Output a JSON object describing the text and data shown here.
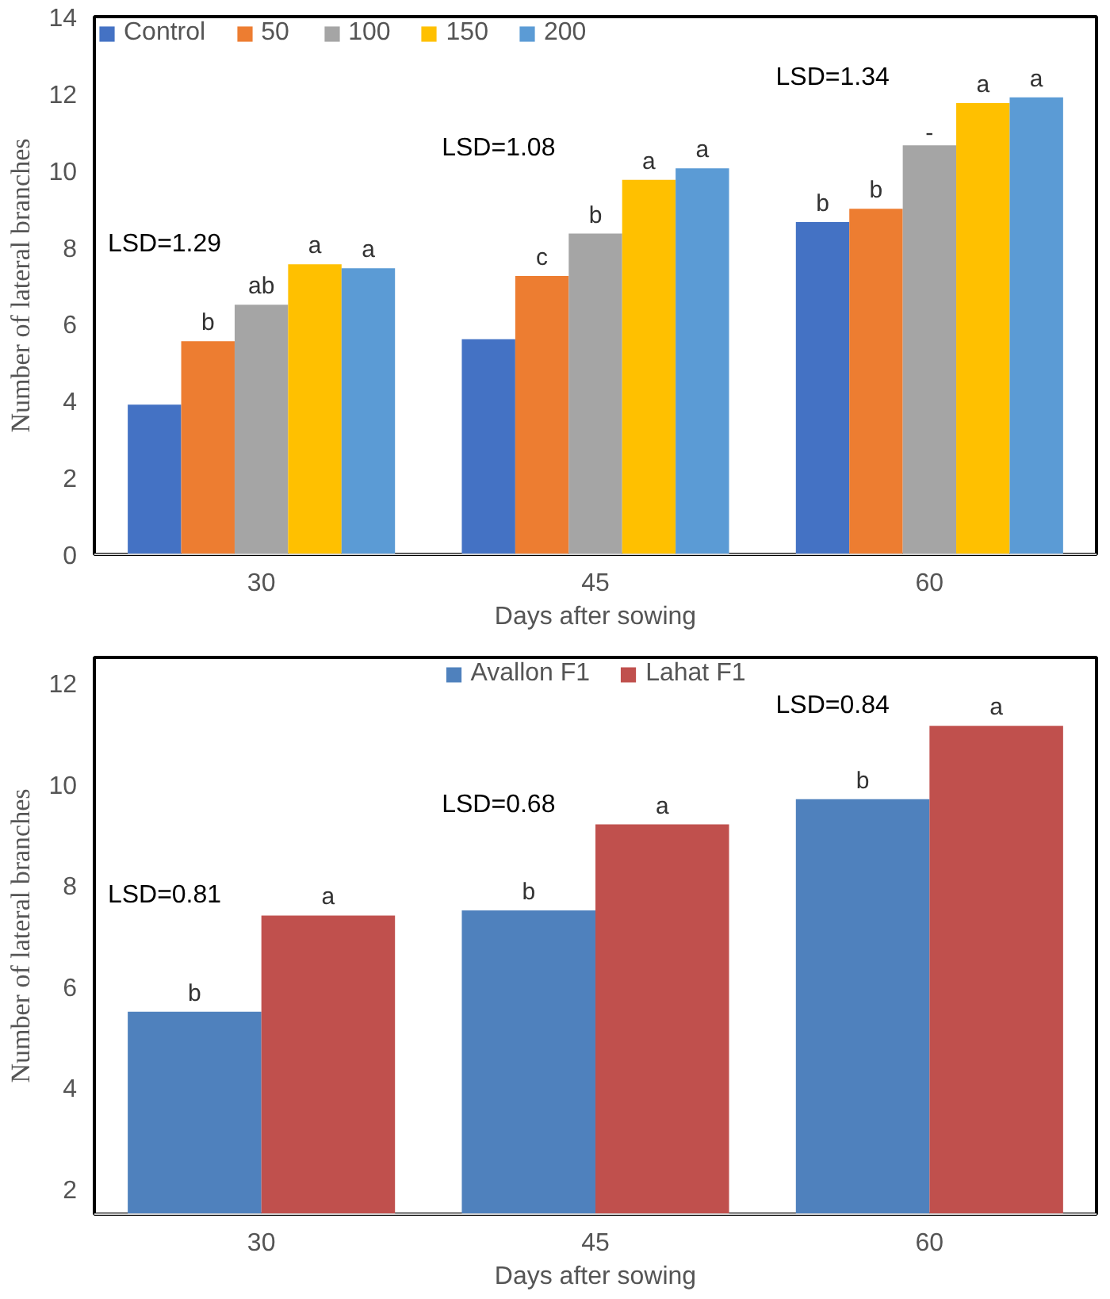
{
  "chart_data": [
    {
      "type": "bar",
      "xlabel": "Days after sowing",
      "ylabel": "Number of lateral branches",
      "categories": [
        "30",
        "45",
        "60"
      ],
      "ylim": [
        0,
        14
      ],
      "yticks": [
        0,
        2,
        4,
        6,
        8,
        10,
        12,
        14
      ],
      "grid": false,
      "legend": "top left",
      "series": [
        {
          "name": "Control",
          "color": "#4472c4",
          "values": [
            3.9,
            5.6,
            8.65
          ],
          "value_labels": [
            null,
            null,
            "b"
          ]
        },
        {
          "name": "50",
          "color": "#ed7d31",
          "values": [
            5.55,
            7.25,
            9.0
          ],
          "value_labels": [
            "b",
            "c",
            "b"
          ]
        },
        {
          "name": "100",
          "color": "#a5a5a5",
          "values": [
            6.5,
            8.35,
            10.65
          ],
          "value_labels": [
            "ab",
            "b",
            "-"
          ]
        },
        {
          "name": "150",
          "color": "#ffc000",
          "values": [
            7.55,
            9.75,
            11.75
          ],
          "value_labels": [
            "a",
            "a",
            "a"
          ]
        },
        {
          "name": "200",
          "color": "#5b9bd5",
          "values": [
            7.45,
            10.05,
            11.9
          ],
          "value_labels": [
            "a",
            "a",
            "a"
          ]
        }
      ],
      "annotations": [
        "LSD=1.29",
        "LSD=1.08",
        "LSD=1.34"
      ]
    },
    {
      "type": "bar",
      "xlabel": "Days after sowing",
      "ylabel": "Number of lateral branches",
      "categories": [
        "30",
        "45",
        "60"
      ],
      "ylim": [
        1.5,
        12.5
      ],
      "yticks": [
        2,
        4,
        6,
        8,
        10,
        12
      ],
      "grid": false,
      "legend": "top",
      "series": [
        {
          "name": "Avallon F1",
          "color": "#4f81bd",
          "values": [
            5.5,
            7.5,
            9.7
          ],
          "value_labels": [
            "b",
            "b",
            "b"
          ]
        },
        {
          "name": "Lahat F1",
          "color": "#c0504d",
          "values": [
            7.4,
            9.2,
            11.15
          ],
          "value_labels": [
            "a",
            "a",
            "a"
          ]
        }
      ],
      "annotations": [
        "LSD=0.81",
        "LSD=0.68",
        "LSD=0.84"
      ]
    }
  ]
}
